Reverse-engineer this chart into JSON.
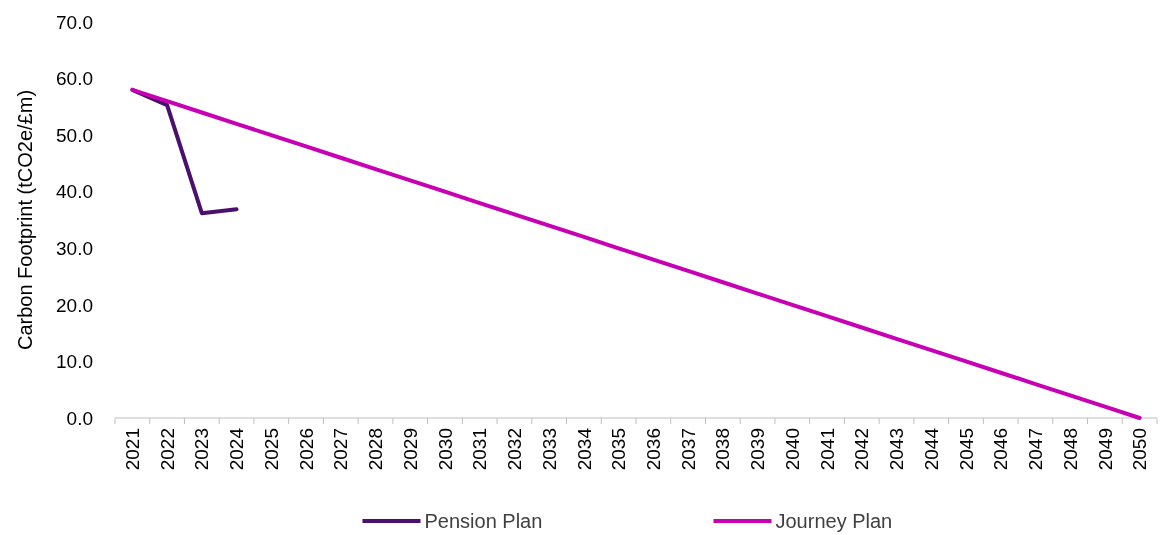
{
  "chart_data": {
    "type": "line",
    "ylabel": "Carbon Footprint (tCO2e/£m)",
    "categories": [
      "2021",
      "2022",
      "2023",
      "2024",
      "2025",
      "2026",
      "2027",
      "2028",
      "2029",
      "2030",
      "2031",
      "2032",
      "2033",
      "2034",
      "2035",
      "2036",
      "2037",
      "2038",
      "2039",
      "2040",
      "2041",
      "2042",
      "2043",
      "2044",
      "2045",
      "2046",
      "2047",
      "2048",
      "2049",
      "2050"
    ],
    "series": [
      {
        "name": "Pension Plan",
        "color": "#4b0f6e",
        "values": [
          58,
          55.3,
          36.2,
          36.9,
          null,
          null,
          null,
          null,
          null,
          null,
          null,
          null,
          null,
          null,
          null,
          null,
          null,
          null,
          null,
          null,
          null,
          null,
          null,
          null,
          null,
          null,
          null,
          null,
          null,
          null
        ]
      },
      {
        "name": "Journey Plan",
        "color": "#c800b4",
        "values": [
          58,
          56,
          54,
          52,
          50,
          48,
          46,
          44,
          42,
          40,
          38,
          36,
          34,
          32,
          30,
          28,
          26,
          24,
          22,
          20,
          18,
          16,
          14,
          12,
          10,
          8,
          6,
          4,
          2,
          0
        ]
      }
    ],
    "ylim": [
      0,
      70
    ],
    "yticks": [
      {
        "value": 0,
        "label": "0.0"
      },
      {
        "value": 10,
        "label": "10.0"
      },
      {
        "value": 20,
        "label": "20.0"
      },
      {
        "value": 30,
        "label": "30.0"
      },
      {
        "value": 40,
        "label": "40.0"
      },
      {
        "value": 50,
        "label": "50.0"
      },
      {
        "value": 60,
        "label": "60.0"
      },
      {
        "value": 70,
        "label": "70.0"
      }
    ],
    "grid": false,
    "legend": "bottom",
    "marker": "none",
    "line_style": "solid"
  }
}
